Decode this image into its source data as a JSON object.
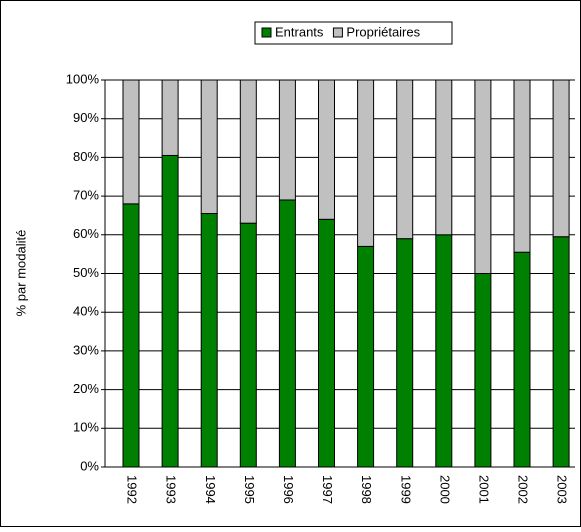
{
  "chart_data": {
    "type": "stacked_bar",
    "y_label": "% par modalité",
    "categories": [
      "1992",
      "1993",
      "1994",
      "1995",
      "1996",
      "1997",
      "1998",
      "1999",
      "2000",
      "2001",
      "2002",
      "2003"
    ],
    "series": [
      {
        "name": "Entrants",
        "color": "#008000",
        "values": [
          68,
          80.5,
          65.5,
          63,
          69,
          64,
          57,
          59,
          60,
          50,
          55.5,
          59.5
        ]
      },
      {
        "name": "Propriétaires",
        "color": "#c0c0c0",
        "values": [
          32,
          19.5,
          34.5,
          37,
          31,
          36,
          43,
          41,
          40,
          50,
          44.5,
          40.5
        ]
      }
    ],
    "ylim": [
      0,
      100
    ],
    "yticks": [
      {
        "value": 0,
        "label": "0%"
      },
      {
        "value": 10,
        "label": "10%"
      },
      {
        "value": 20,
        "label": "20%"
      },
      {
        "value": 30,
        "label": "30%"
      },
      {
        "value": 40,
        "label": "40%"
      },
      {
        "value": 50,
        "label": "50%"
      },
      {
        "value": 60,
        "label": "60%"
      },
      {
        "value": 70,
        "label": "70%"
      },
      {
        "value": 80,
        "label": "80%"
      },
      {
        "value": 90,
        "label": "90%"
      },
      {
        "value": 100,
        "label": "100%"
      }
    ],
    "grid": true,
    "legend": "top"
  }
}
